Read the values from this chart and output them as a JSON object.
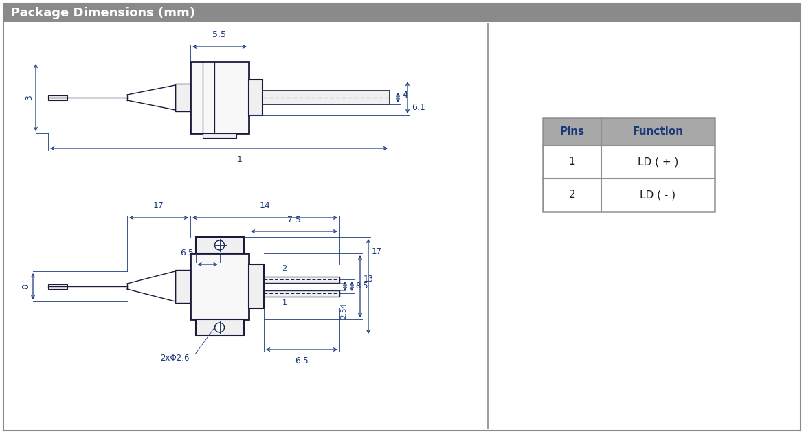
{
  "title": "Package Dimensions (mm)",
  "title_bg": "#8a8a8a",
  "title_color": "#ffffff",
  "bg_color": "#ffffff",
  "border_color": "#8a8a8a",
  "dc": "#1a1a3a",
  "dimc": "#1a3a7a",
  "table": {
    "headers": [
      "Pins",
      "Function"
    ],
    "rows": [
      [
        "1",
        "LD ( + )"
      ],
      [
        "2",
        "LD ( - )"
      ]
    ],
    "header_bg": "#a8a8a8",
    "header_color": "#1a3a7a",
    "cell_color": "#1a1a1a",
    "border_color": "#909090"
  },
  "top_view": {
    "dim_3": "3",
    "dim_5p5": "5.5",
    "dim_4": "4",
    "dim_6p1": "6.1",
    "dim_1": "1"
  },
  "front_view": {
    "dim_17": "17",
    "dim_14": "14",
    "dim_7p5": "7.5",
    "dim_6p5": "6.5",
    "dim_8": "8",
    "dim_2p54": "2.54",
    "dim_8p5": "8.5",
    "dim_13": "13",
    "dim_17b": "17",
    "dim_6p5b": "6.5",
    "dim_2xphi2p6": "2xΦ2.6",
    "pin1": "1",
    "pin2": "2"
  }
}
